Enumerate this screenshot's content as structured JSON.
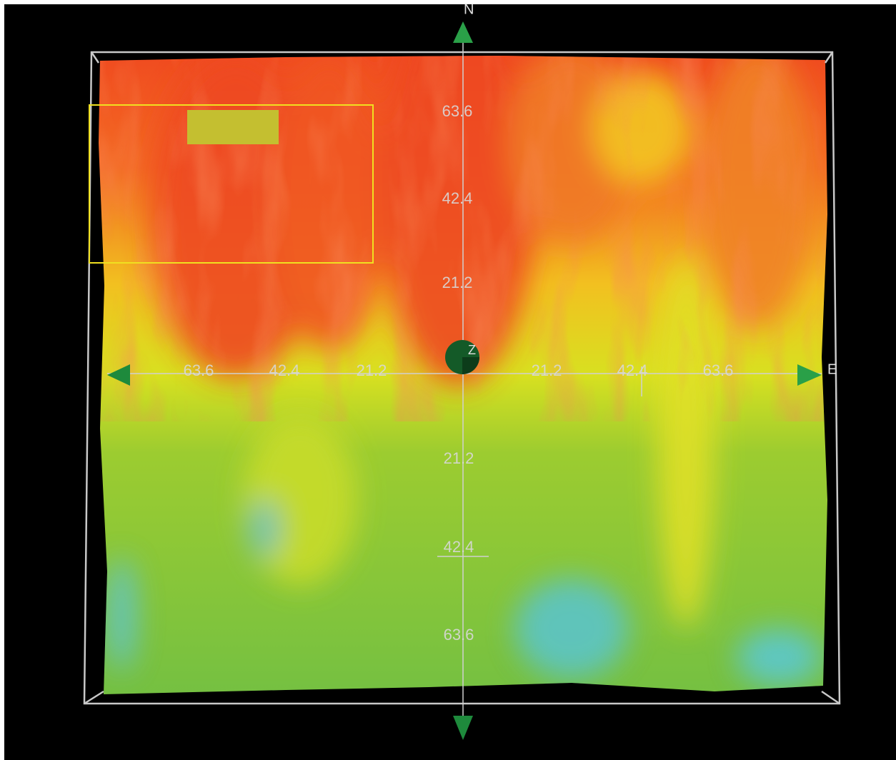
{
  "compass": {
    "north": "N",
    "east": "E",
    "center": "Z"
  },
  "axes": {
    "north": [
      "63.6",
      "42.4",
      "21.2"
    ],
    "south": [
      "21.2",
      "42.4",
      "63.6"
    ],
    "west": [
      "63.6",
      "42.4",
      "21.2"
    ],
    "east": [
      "21.2",
      "42.4",
      "63.6"
    ]
  }
}
